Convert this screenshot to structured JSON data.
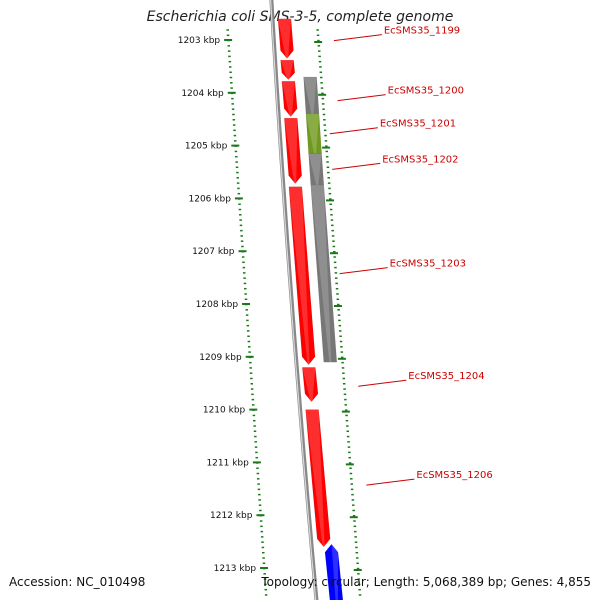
{
  "title": "Escherichia coli SMS-3-5, complete genome",
  "accession": "Accession: NC_010498",
  "summary": "Topology: circular; Length: 5,068,389 bp; Genes: 4,855",
  "colors": {
    "forward_gene": "#ff0000",
    "reverse_gene": "#777777",
    "highlight_gene": "#6f9a1f",
    "other_gene": "#0000ff",
    "scale_ticks": "#1a7a1a",
    "label": "#cc0000",
    "backbone": "#888888"
  },
  "scale": {
    "unit": "kbp",
    "ticks": [
      {
        "pos": 1203,
        "label": "1203 kbp"
      },
      {
        "pos": 1204,
        "label": "1204 kbp"
      },
      {
        "pos": 1205,
        "label": "1205 kbp"
      },
      {
        "pos": 1206,
        "label": "1206 kbp"
      },
      {
        "pos": 1207,
        "label": "1207 kbp"
      },
      {
        "pos": 1208,
        "label": "1208 kbp"
      },
      {
        "pos": 1209,
        "label": "1209 kbp"
      },
      {
        "pos": 1210,
        "label": "1210 kbp"
      },
      {
        "pos": 1211,
        "label": "1211 kbp"
      },
      {
        "pos": 1212,
        "label": "1212 kbp"
      },
      {
        "pos": 1213,
        "label": "1213 kbp"
      }
    ]
  },
  "genes": [
    {
      "name": "EcSMS35_1199",
      "start": 1202.6,
      "end": 1203.35,
      "strand": "forward",
      "labeled": true
    },
    {
      "name": "",
      "start": 1203.38,
      "end": 1203.75,
      "strand": "forward",
      "labeled": false
    },
    {
      "name": "EcSMS35_1200",
      "start": 1203.78,
      "end": 1204.45,
      "strand": "forward",
      "labeled": true
    },
    {
      "name": "",
      "start": 1203.7,
      "end": 1204.4,
      "strand": "reverse",
      "labeled": false
    },
    {
      "name": "EcSMS35_1201",
      "start": 1204.4,
      "end": 1205.15,
      "strand": "reverse-highlight",
      "labeled": true
    },
    {
      "name": "EcSMS35_1202",
      "start": 1205.15,
      "end": 1205.75,
      "strand": "reverse",
      "labeled": true
    },
    {
      "name": "",
      "start": 1204.48,
      "end": 1205.72,
      "strand": "forward",
      "labeled": false
    },
    {
      "name": "EcSMS35_1203",
      "start": 1205.75,
      "end": 1209.1,
      "strand": "reverse",
      "labeled": true
    },
    {
      "name": "",
      "start": 1205.78,
      "end": 1209.15,
      "strand": "forward",
      "labeled": false
    },
    {
      "name": "EcSMS35_1204",
      "start": 1209.2,
      "end": 1209.85,
      "strand": "forward",
      "labeled": true
    },
    {
      "name": "EcSMS35_1206",
      "start": 1210.0,
      "end": 1212.6,
      "strand": "forward",
      "labeled": true
    },
    {
      "name": "",
      "start": 1212.55,
      "end": 1213.7,
      "strand": "other",
      "labeled": false
    }
  ]
}
